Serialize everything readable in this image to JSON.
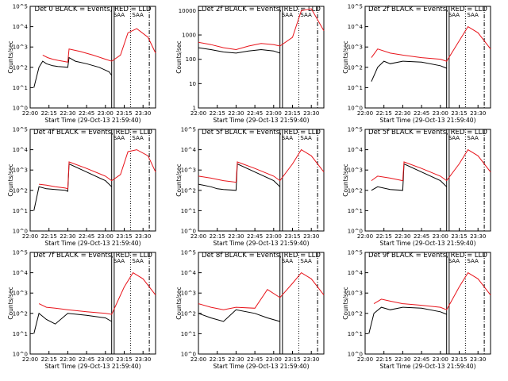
{
  "colors": {
    "events": "#000000",
    "lld": "#e8141b",
    "axes": "#000000",
    "background": "#ffffff"
  },
  "chart_data": [
    {
      "type": "line",
      "title": "Det 0  BLACK = Events, RED = LLD",
      "xlabel": "Start Time (29-Oct-13 21:59:40)",
      "ylabel": "Counts/sec",
      "x_ticks": [
        "22:00",
        "22:15",
        "22:30",
        "22:45",
        "23:00",
        "23:15",
        "23:30"
      ],
      "y_ticks": [
        "10^0",
        "10^1",
        "10^2",
        "10^3",
        "10^4",
        "10^5"
      ],
      "xlim": [
        "22:00",
        "23:40"
      ],
      "ylim": [
        1,
        100000
      ],
      "y_scale": "log",
      "annotations": [
        "SAA",
        "SAA"
      ],
      "series": [
        {
          "name": "Events",
          "x": [
            "22:03",
            "22:07",
            "22:10",
            "22:13",
            "22:18",
            "22:22",
            "22:26",
            "22:30",
            "22:31",
            "22:36",
            "22:45",
            "22:55",
            "23:03",
            "23:05"
          ],
          "y": [
            10,
            100,
            200,
            150,
            120,
            110,
            105,
            100,
            300,
            200,
            150,
            100,
            60,
            40
          ]
        },
        {
          "name": "LLD",
          "x": [
            "22:10",
            "22:14",
            "22:18",
            "22:22",
            "22:26",
            "22:30",
            "22:31",
            "22:40",
            "22:50",
            "23:00",
            "23:05",
            "23:12",
            "23:18",
            "23:25",
            "23:34",
            "23:40"
          ],
          "y": [
            400,
            300,
            250,
            220,
            200,
            180,
            800,
            600,
            400,
            250,
            200,
            400,
            5000,
            8000,
            3000,
            500
          ]
        }
      ]
    },
    {
      "type": "line",
      "title": "Det 2f BLACK = Events, RED = LLD",
      "xlabel": "Start Time (29-Oct-13 21:59:40)",
      "ylabel": "Counts/sec",
      "x_ticks": [
        "22:00",
        "22:15",
        "22:30",
        "22:45",
        "23:00",
        "23:15",
        "23:30"
      ],
      "y_ticks": [
        "1",
        "10",
        "100",
        "1000",
        "10000"
      ],
      "xlim": [
        "22:00",
        "23:40"
      ],
      "ylim": [
        1,
        15000
      ],
      "y_scale": "log",
      "annotations": [
        "SAA",
        "SAA"
      ],
      "series": [
        {
          "name": "Events",
          "x": [
            "22:00",
            "22:10",
            "22:20",
            "22:30",
            "22:40",
            "22:50",
            "23:00",
            "23:05"
          ],
          "y": [
            300,
            250,
            200,
            180,
            220,
            250,
            220,
            180
          ]
        },
        {
          "name": "LLD",
          "x": [
            "22:00",
            "22:10",
            "22:20",
            "22:30",
            "22:40",
            "22:50",
            "23:00",
            "23:05",
            "23:15",
            "23:22",
            "23:30",
            "23:40"
          ],
          "y": [
            500,
            400,
            300,
            250,
            350,
            450,
            400,
            350,
            800,
            10000,
            12000,
            1500
          ]
        }
      ]
    },
    {
      "type": "line",
      "title": "Det 2f BLACK = Events, RED = LLD",
      "xlabel": "Start Time (29-Oct-13 21:59:40)",
      "ylabel": "Counts/sec",
      "x_ticks": [
        "22:00",
        "22:15",
        "22:30",
        "22:45",
        "23:00",
        "23:15",
        "23:30"
      ],
      "y_ticks": [
        "10^0",
        "10^1",
        "10^2",
        "10^3",
        "10^4",
        "10^5"
      ],
      "xlim": [
        "22:00",
        "23:40"
      ],
      "ylim": [
        1,
        100000
      ],
      "y_scale": "log",
      "annotations": [
        "SAA",
        "SAA"
      ],
      "series": [
        {
          "name": "Events",
          "x": [
            "22:05",
            "22:10",
            "22:15",
            "22:20",
            "22:30",
            "22:45",
            "23:00",
            "23:05"
          ],
          "y": [
            20,
            100,
            200,
            150,
            200,
            180,
            120,
            90
          ]
        },
        {
          "name": "LLD",
          "x": [
            "22:05",
            "22:10",
            "22:20",
            "22:30",
            "22:45",
            "23:00",
            "23:05",
            "23:15",
            "23:22",
            "23:30",
            "23:40"
          ],
          "y": [
            300,
            800,
            500,
            400,
            300,
            250,
            200,
            2000,
            10000,
            5000,
            800
          ]
        }
      ]
    },
    {
      "type": "line",
      "title": "Det 4f BLACK = Events, RED = LLD",
      "xlabel": "Start Time (29-Oct-13 21:59:40)",
      "ylabel": "Counts/sec",
      "x_ticks": [
        "22:00",
        "22:15",
        "22:30",
        "22:45",
        "23:00",
        "23:15",
        "23:30"
      ],
      "y_ticks": [
        "10^0",
        "10^1",
        "10^2",
        "10^3",
        "10^4",
        "10^5"
      ],
      "xlim": [
        "22:00",
        "23:40"
      ],
      "ylim": [
        1,
        100000
      ],
      "y_scale": "log",
      "annotations": [
        "SAA",
        "SAA"
      ],
      "series": [
        {
          "name": "Events",
          "x": [
            "22:03",
            "22:07",
            "22:13",
            "22:20",
            "22:28",
            "22:30",
            "22:31",
            "22:45",
            "23:00",
            "23:05"
          ],
          "y": [
            10,
            150,
            120,
            110,
            100,
            90,
            2000,
            800,
            300,
            150
          ]
        },
        {
          "name": "LLD",
          "x": [
            "22:07",
            "22:13",
            "22:20",
            "22:28",
            "22:30",
            "22:31",
            "22:45",
            "23:00",
            "23:05",
            "23:12",
            "23:18",
            "23:25",
            "23:34",
            "23:40"
          ],
          "y": [
            200,
            180,
            150,
            130,
            120,
            2500,
            1200,
            500,
            300,
            600,
            8000,
            10000,
            5000,
            800
          ]
        }
      ]
    },
    {
      "type": "line",
      "title": "Det 5f BLACK = Events, RED = LLD",
      "xlabel": "Start Time (29-Oct-13 21:59:40)",
      "ylabel": "Counts/sec",
      "x_ticks": [
        "22:00",
        "22:15",
        "22:30",
        "22:45",
        "23:00",
        "23:15",
        "23:30"
      ],
      "y_ticks": [
        "10^0",
        "10^1",
        "10^2",
        "10^3",
        "10^4",
        "10^5"
      ],
      "xlim": [
        "22:00",
        "23:40"
      ],
      "ylim": [
        1,
        100000
      ],
      "y_scale": "log",
      "annotations": [
        "SAA",
        "SAA"
      ],
      "series": [
        {
          "name": "Events",
          "x": [
            "22:00",
            "22:10",
            "22:15",
            "22:20",
            "22:30",
            "22:31",
            "22:45",
            "23:00",
            "23:05"
          ],
          "y": [
            200,
            150,
            120,
            110,
            100,
            2000,
            800,
            300,
            150
          ]
        },
        {
          "name": "LLD",
          "x": [
            "22:00",
            "22:10",
            "22:20",
            "22:30",
            "22:31",
            "22:45",
            "23:00",
            "23:05",
            "23:15",
            "23:22",
            "23:30",
            "23:40"
          ],
          "y": [
            500,
            400,
            300,
            250,
            2500,
            1200,
            500,
            300,
            2000,
            10000,
            5000,
            800
          ]
        }
      ]
    },
    {
      "type": "line",
      "title": "Det 5f BLACK = Events, RED = LLD",
      "xlabel": "Start Time (29-Oct-13 21:59:40)",
      "ylabel": "Counts/sec",
      "x_ticks": [
        "22:00",
        "22:15",
        "22:30",
        "22:45",
        "23:00",
        "23:15",
        "23:30"
      ],
      "y_ticks": [
        "10^0",
        "10^1",
        "10^2",
        "10^3",
        "10^4",
        "10^5"
      ],
      "xlim": [
        "22:00",
        "23:40"
      ],
      "ylim": [
        1,
        100000
      ],
      "y_scale": "log",
      "annotations": [
        "SAA",
        "SAA"
      ],
      "series": [
        {
          "name": "Events",
          "x": [
            "22:05",
            "22:10",
            "22:20",
            "22:30",
            "22:31",
            "22:45",
            "23:00",
            "23:05"
          ],
          "y": [
            100,
            150,
            110,
            100,
            2000,
            800,
            300,
            150
          ]
        },
        {
          "name": "LLD",
          "x": [
            "22:05",
            "22:10",
            "22:20",
            "22:30",
            "22:31",
            "22:45",
            "23:00",
            "23:05",
            "23:15",
            "23:22",
            "23:30",
            "23:40"
          ],
          "y": [
            300,
            500,
            400,
            300,
            2500,
            1200,
            500,
            300,
            2000,
            10000,
            5000,
            800
          ]
        }
      ]
    },
    {
      "type": "line",
      "title": "Det 7f BLACK = Events, RED = LLD",
      "xlabel": "Start Time (29-Oct-13 21:59:40)",
      "ylabel": "Counts/sec",
      "x_ticks": [
        "22:00",
        "22:15",
        "22:30",
        "22:45",
        "23:00",
        "23:15",
        "23:30"
      ],
      "y_ticks": [
        "10^0",
        "10^1",
        "10^2",
        "10^3",
        "10^4",
        "10^5"
      ],
      "xlim": [
        "22:00",
        "23:40"
      ],
      "ylim": [
        1,
        100000
      ],
      "y_scale": "log",
      "annotations": [
        "SAA",
        "SAA"
      ],
      "series": [
        {
          "name": "Events",
          "x": [
            "22:03",
            "22:07",
            "22:13",
            "22:20",
            "22:30",
            "22:45",
            "23:00",
            "23:05"
          ],
          "y": [
            10,
            100,
            50,
            30,
            100,
            80,
            60,
            40
          ]
        },
        {
          "name": "LLD",
          "x": [
            "22:07",
            "22:13",
            "22:20",
            "22:30",
            "22:45",
            "23:00",
            "23:05",
            "23:15",
            "23:22",
            "23:30",
            "23:40"
          ],
          "y": [
            300,
            200,
            180,
            150,
            120,
            100,
            90,
            2000,
            10000,
            5000,
            800
          ]
        }
      ]
    },
    {
      "type": "line",
      "title": "Det 8f BLACK = Events, RED = LLD",
      "xlabel": "Start Time (29-Oct-13 21:59:40)",
      "ylabel": "Counts/sec",
      "x_ticks": [
        "22:00",
        "22:15",
        "22:30",
        "22:45",
        "23:00",
        "23:15",
        "23:30"
      ],
      "y_ticks": [
        "10^0",
        "10^1",
        "10^2",
        "10^3",
        "10^4",
        "10^5"
      ],
      "xlim": [
        "22:00",
        "23:40"
      ],
      "ylim": [
        1,
        100000
      ],
      "y_scale": "log",
      "annotations": [
        "SAA",
        "SAA"
      ],
      "series": [
        {
          "name": "Events",
          "x": [
            "22:00",
            "22:10",
            "22:20",
            "22:30",
            "22:45",
            "22:55",
            "23:05"
          ],
          "y": [
            100,
            60,
            40,
            150,
            100,
            60,
            40
          ]
        },
        {
          "name": "LLD",
          "x": [
            "22:00",
            "22:10",
            "22:20",
            "22:30",
            "22:45",
            "22:55",
            "23:05",
            "23:15",
            "23:22",
            "23:30",
            "23:40"
          ],
          "y": [
            300,
            200,
            150,
            200,
            180,
            1500,
            600,
            3000,
            10000,
            5000,
            800
          ]
        }
      ]
    },
    {
      "type": "line",
      "title": "Det 9f BLACK = Events, RED = LLD",
      "xlabel": "Start Time (29-Oct-13 21:59:40)",
      "ylabel": "Counts/sec",
      "x_ticks": [
        "22:00",
        "22:15",
        "22:30",
        "22:45",
        "23:00",
        "23:15",
        "23:30"
      ],
      "y_ticks": [
        "10^0",
        "10^1",
        "10^2",
        "10^3",
        "10^4",
        "10^5"
      ],
      "xlim": [
        "22:00",
        "23:40"
      ],
      "ylim": [
        1,
        100000
      ],
      "y_scale": "log",
      "annotations": [
        "SAA",
        "SAA"
      ],
      "series": [
        {
          "name": "Events",
          "x": [
            "22:03",
            "22:07",
            "22:13",
            "22:20",
            "22:30",
            "22:45",
            "23:00",
            "23:05"
          ],
          "y": [
            10,
            100,
            200,
            150,
            200,
            180,
            120,
            90
          ]
        },
        {
          "name": "LLD",
          "x": [
            "22:07",
            "22:13",
            "22:20",
            "22:30",
            "22:45",
            "23:00",
            "23:05",
            "23:15",
            "23:22",
            "23:30",
            "23:40"
          ],
          "y": [
            300,
            500,
            400,
            300,
            250,
            200,
            150,
            2000,
            10000,
            5000,
            800
          ]
        }
      ]
    }
  ]
}
